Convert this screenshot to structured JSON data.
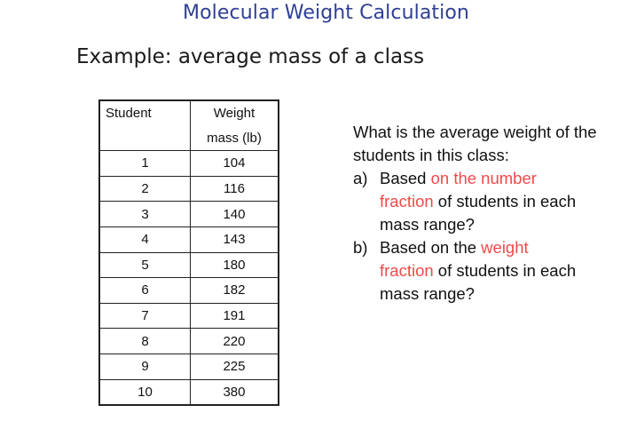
{
  "slide": {
    "title": "Molecular Weight Calculation",
    "subtitle": "Example: average mass of a class"
  },
  "table": {
    "header_student": "Student",
    "header_weight_line1": "Weight",
    "header_weight_line2": "mass (lb)",
    "rows": [
      {
        "student": "1",
        "weight": "104"
      },
      {
        "student": "2",
        "weight": "116"
      },
      {
        "student": "3",
        "weight": "140"
      },
      {
        "student": "4",
        "weight": "143"
      },
      {
        "student": "5",
        "weight": "180"
      },
      {
        "student": "6",
        "weight": "182"
      },
      {
        "student": "7",
        "weight": "191"
      },
      {
        "student": "8",
        "weight": "220"
      },
      {
        "student": "9",
        "weight": "225"
      },
      {
        "student": "10",
        "weight": "380"
      }
    ]
  },
  "question": {
    "intro": "What is the average weight of the students in this class:",
    "a": {
      "marker": "a)",
      "prefix": "Based ",
      "highlight_line1": "on the number",
      "highlight_line2": "fraction",
      "suffix": " of students in each mass range?"
    },
    "b": {
      "marker": "b)",
      "prefix": "Based on the ",
      "highlight_line1": "weight",
      "highlight_line2": "fraction",
      "suffix": " of students in each mass range?"
    },
    "highlight_color": "#f04a4a"
  },
  "colors": {
    "title": "#2f3f95",
    "text": "#111111",
    "table_border": "#222222"
  }
}
